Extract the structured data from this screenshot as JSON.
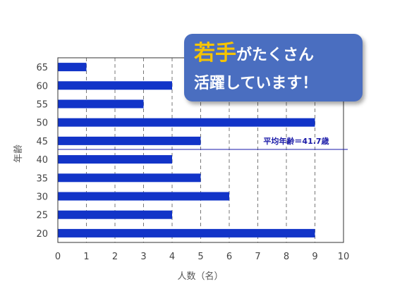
{
  "chart_data": {
    "type": "bar",
    "orientation": "horizontal",
    "title": "",
    "xlabel": "人数（名）",
    "ylabel": "年齢",
    "categories": [
      "20",
      "25",
      "30",
      "35",
      "40",
      "45",
      "50",
      "55",
      "60",
      "65"
    ],
    "values": [
      9,
      4,
      6,
      5,
      4,
      5,
      9,
      3,
      4,
      1
    ],
    "xlim": [
      0,
      10
    ],
    "x_ticks": [
      "0",
      "1",
      "2",
      "3",
      "4",
      "5",
      "6",
      "7",
      "8",
      "9",
      "10"
    ],
    "grid": "vertical dashed",
    "bar_color": "#1234c8",
    "reference_line": {
      "age": 42,
      "label": "平均年齢＝41.7歳",
      "color": "#1a1aa8"
    }
  },
  "callout": {
    "emphasis": "若手",
    "line1_rest": "がたくさん",
    "line2": "活躍しています！",
    "background": "#4a6ec0",
    "emphasis_color": "#f6c400"
  }
}
